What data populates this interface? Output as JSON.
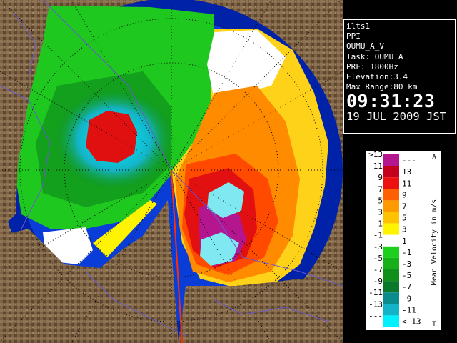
{
  "info": {
    "station": "ilts1",
    "scan_type": "PPI",
    "product": "OUMU_A_V",
    "task": "Task: OUMU_A",
    "prf": "PRF: 1800Hz",
    "elevation": "Elevation:3.4",
    "max_range": "Max Range:80 km",
    "time": "09:31:23",
    "date": "19 JUL 2009 JST"
  },
  "legend": {
    "title": "Mean Velocity in m/s",
    "top_mark": "A",
    "bottom_mark": "T",
    "rows": [
      {
        "left": ">13",
        "right": "---",
        "color": "#b3168f"
      },
      {
        "left": "11",
        "right": "13",
        "color": "#c4001c"
      },
      {
        "left": "9",
        "right": "11",
        "color": "#ec1010"
      },
      {
        "left": "7",
        "right": "9",
        "color": "#ff6000"
      },
      {
        "left": "5",
        "right": "7",
        "color": "#ff9900"
      },
      {
        "left": "3",
        "right": "5",
        "color": "#ffc200"
      },
      {
        "left": "1",
        "right": "3",
        "color": "#fff400"
      },
      {
        "left": "-1",
        "right": "1",
        "color": "#ffffff"
      },
      {
        "left": "-3",
        "right": "-1",
        "color": "#1ed01e"
      },
      {
        "left": "-5",
        "right": "-3",
        "color": "#18b018"
      },
      {
        "left": "-7",
        "right": "-5",
        "color": "#10901a"
      },
      {
        "left": "-9",
        "right": "-7",
        "color": "#0a7a2a"
      },
      {
        "left": "-11",
        "right": "-9",
        "color": "#0a8c8c"
      },
      {
        "left": "-13",
        "right": "-11",
        "color": "#14b4c8"
      },
      {
        "left": "---",
        "right": "<-13",
        "color": "#00f0ff"
      }
    ]
  },
  "colors": {
    "range_ring_fill": "#0a3cd8",
    "outer_fill": "#0022a8",
    "terrain": "#7a6040"
  }
}
